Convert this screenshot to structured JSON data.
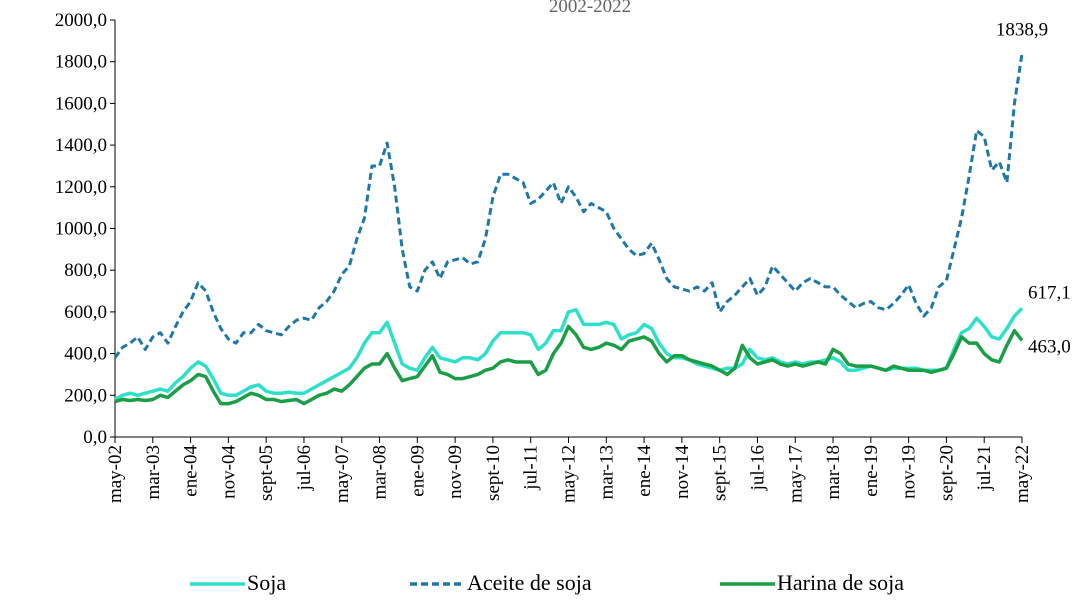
{
  "chart_data": {
    "type": "line",
    "subtitle": "2002-2022",
    "categories": [
      "may-02",
      null,
      null,
      null,
      null,
      "mar-03",
      null,
      null,
      null,
      null,
      "ene-04",
      null,
      null,
      null,
      null,
      "nov-04",
      null,
      null,
      null,
      null,
      "sept-05",
      null,
      null,
      null,
      null,
      "jul-06",
      null,
      null,
      null,
      null,
      "may-07",
      null,
      null,
      null,
      null,
      "mar-08",
      null,
      null,
      null,
      null,
      "ene-09",
      null,
      null,
      null,
      null,
      "nov-09",
      null,
      null,
      null,
      null,
      "sept-10",
      null,
      null,
      null,
      null,
      "jul-11",
      null,
      null,
      null,
      null,
      "may-12",
      null,
      null,
      null,
      null,
      "mar-13",
      null,
      null,
      null,
      null,
      "ene-14",
      null,
      null,
      null,
      null,
      "nov-14",
      null,
      null,
      null,
      null,
      "sept-15",
      null,
      null,
      null,
      null,
      "jul-16",
      null,
      null,
      null,
      null,
      "may-17",
      null,
      null,
      null,
      null,
      "mar-18",
      null,
      null,
      null,
      null,
      "ene-19",
      null,
      null,
      null,
      null,
      "nov-19",
      null,
      null,
      null,
      null,
      "sept-20",
      null,
      null,
      null,
      null,
      "jul-21",
      null,
      null,
      null,
      null,
      "may-22"
    ],
    "series": [
      {
        "name": "Soja",
        "color": "#2ee0c9",
        "dash": false,
        "values": [
          180,
          200,
          210,
          200,
          210,
          220,
          230,
          220,
          260,
          290,
          330,
          360,
          340,
          280,
          210,
          200,
          200,
          220,
          240,
          250,
          220,
          210,
          210,
          215,
          210,
          210,
          230,
          250,
          270,
          290,
          310,
          330,
          380,
          450,
          500,
          500,
          550,
          450,
          350,
          330,
          320,
          380,
          430,
          380,
          370,
          360,
          380,
          380,
          370,
          400,
          460,
          500,
          500,
          500,
          500,
          490,
          420,
          450,
          510,
          510,
          600,
          610,
          540,
          540,
          540,
          550,
          540,
          470,
          490,
          500,
          540,
          520,
          450,
          400,
          380,
          380,
          370,
          350,
          340,
          330,
          320,
          330,
          330,
          350,
          420,
          380,
          370,
          380,
          360,
          350,
          360,
          350,
          360,
          360,
          370,
          380,
          360,
          320,
          320,
          330,
          340,
          330,
          320,
          330,
          330,
          330,
          330,
          320,
          320,
          320,
          330,
          420,
          500,
          520,
          570,
          530,
          480,
          470,
          520,
          580,
          617.1
        ],
        "value_labels": {
          "120": "617,1"
        }
      },
      {
        "name": "Aceite de soja",
        "color": "#1f78a8",
        "dash": true,
        "values": [
          380,
          430,
          450,
          480,
          420,
          480,
          500,
          450,
          530,
          600,
          650,
          740,
          700,
          600,
          520,
          470,
          450,
          500,
          500,
          540,
          510,
          500,
          490,
          530,
          560,
          570,
          560,
          620,
          650,
          700,
          780,
          820,
          950,
          1050,
          1300,
          1300,
          1410,
          1200,
          900,
          720,
          700,
          800,
          840,
          760,
          840,
          850,
          860,
          830,
          840,
          950,
          1150,
          1260,
          1260,
          1240,
          1220,
          1120,
          1140,
          1180,
          1220,
          1120,
          1200,
          1150,
          1080,
          1120,
          1100,
          1080,
          1000,
          950,
          900,
          870,
          880,
          930,
          850,
          760,
          720,
          710,
          700,
          720,
          700,
          740,
          600,
          650,
          680,
          720,
          760,
          680,
          720,
          820,
          780,
          740,
          700,
          740,
          760,
          740,
          720,
          720,
          680,
          650,
          620,
          640,
          650,
          620,
          610,
          640,
          680,
          730,
          640,
          580,
          620,
          720,
          750,
          900,
          1050,
          1250,
          1470,
          1440,
          1280,
          1320,
          1220,
          1600,
          1838.9
        ],
        "value_labels": {
          "120": "1838,9"
        }
      },
      {
        "name": "Harina de soja",
        "color": "#1a9e46",
        "dash": false,
        "values": [
          170,
          180,
          175,
          180,
          175,
          180,
          200,
          190,
          220,
          250,
          270,
          300,
          290,
          220,
          160,
          160,
          170,
          190,
          210,
          200,
          180,
          180,
          170,
          175,
          180,
          160,
          180,
          200,
          210,
          230,
          220,
          250,
          290,
          330,
          350,
          350,
          400,
          330,
          270,
          280,
          290,
          340,
          390,
          310,
          300,
          280,
          280,
          290,
          300,
          320,
          330,
          360,
          370,
          360,
          360,
          360,
          300,
          320,
          400,
          450,
          530,
          490,
          430,
          420,
          430,
          450,
          440,
          420,
          460,
          470,
          480,
          460,
          400,
          360,
          390,
          390,
          370,
          360,
          350,
          340,
          320,
          300,
          330,
          440,
          380,
          350,
          360,
          370,
          350,
          340,
          350,
          340,
          350,
          360,
          350,
          420,
          400,
          350,
          340,
          340,
          340,
          330,
          320,
          340,
          330,
          320,
          320,
          320,
          310,
          320,
          330,
          400,
          480,
          450,
          450,
          400,
          370,
          360,
          440,
          510,
          463.0
        ],
        "value_labels": {
          "120": "463,0"
        }
      }
    ],
    "ylim": [
      0,
      2000
    ],
    "yticks": [
      {
        "value": 0,
        "label": "0,0"
      },
      {
        "value": 200,
        "label": "200,0"
      },
      {
        "value": 400,
        "label": "400,0"
      },
      {
        "value": 600,
        "label": "600,0"
      },
      {
        "value": 800,
        "label": "800,0"
      },
      {
        "value": 1000,
        "label": "1000,0"
      },
      {
        "value": 1200,
        "label": "1200,0"
      },
      {
        "value": 1400,
        "label": "1400,0"
      },
      {
        "value": 1600,
        "label": "1600,0"
      },
      {
        "value": 1800,
        "label": "1800,0"
      },
      {
        "value": 2000,
        "label": "2000,0"
      }
    ],
    "grid": false,
    "legend": "bottom"
  }
}
